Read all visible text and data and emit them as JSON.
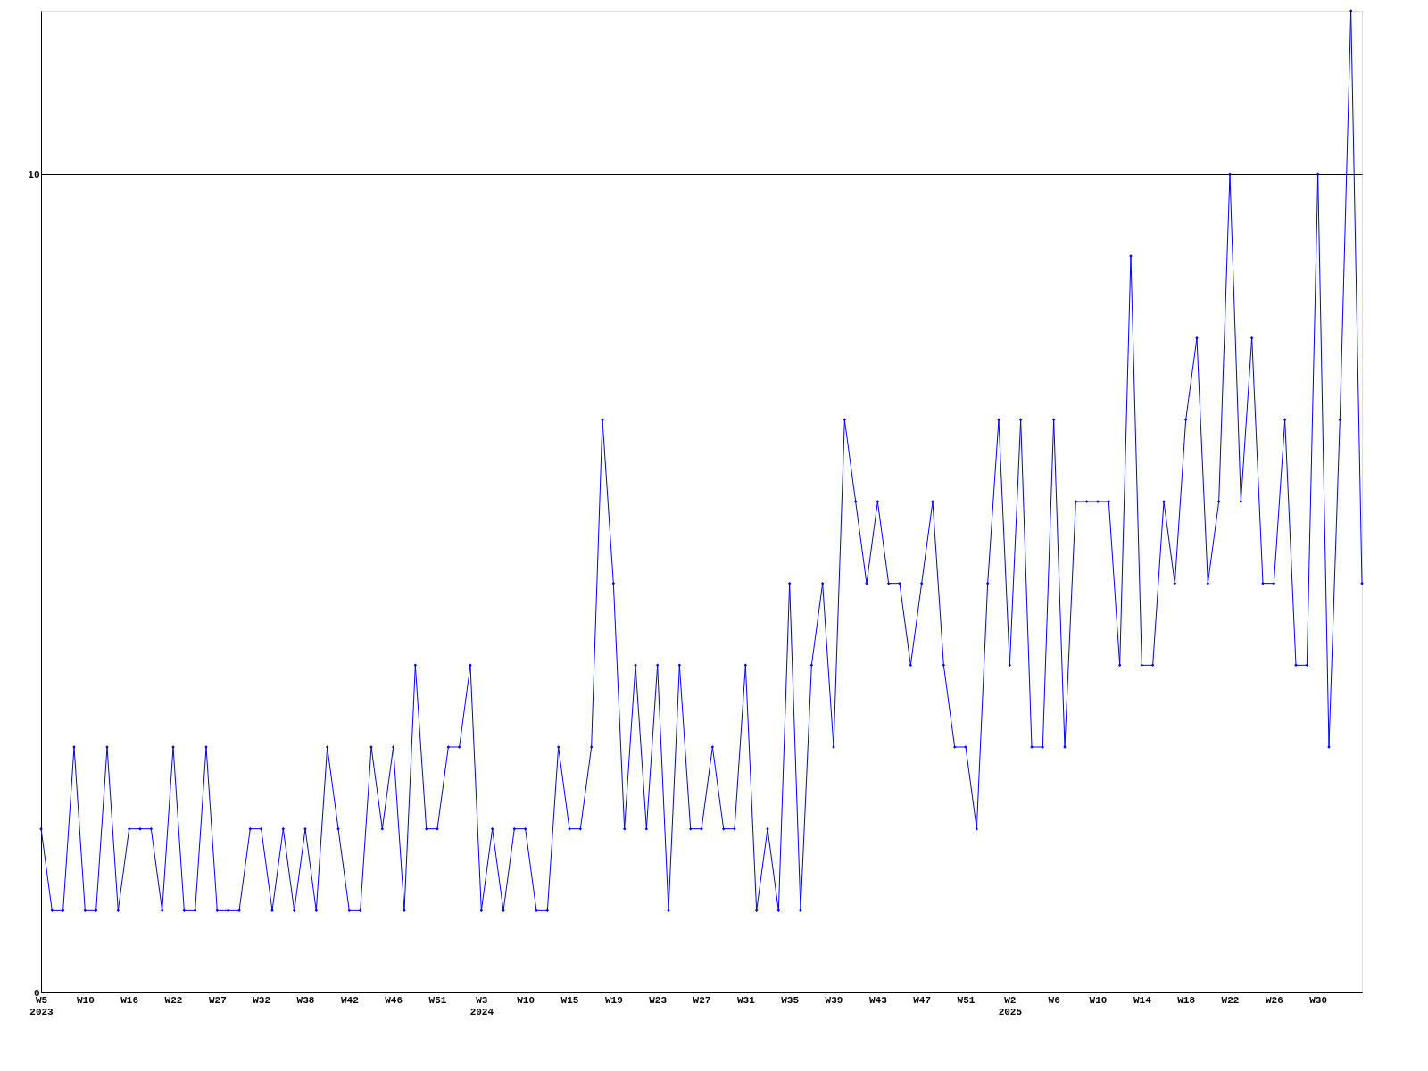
{
  "chart_data": {
    "type": "line",
    "categories": [
      "W5\n2023",
      null,
      null,
      null,
      "W10",
      null,
      null,
      null,
      "W16",
      null,
      null,
      null,
      "W22",
      null,
      null,
      null,
      "W27",
      null,
      null,
      null,
      "W32",
      null,
      null,
      null,
      "W38",
      null,
      null,
      null,
      "W42",
      null,
      null,
      null,
      "W46",
      null,
      null,
      null,
      "W51",
      null,
      null,
      null,
      "W3\n2024",
      null,
      null,
      null,
      "W10",
      null,
      null,
      null,
      "W15",
      null,
      null,
      null,
      "W19",
      null,
      null,
      null,
      "W23",
      null,
      null,
      null,
      "W27",
      null,
      null,
      null,
      "W31",
      null,
      null,
      null,
      "W35",
      null,
      null,
      null,
      "W39",
      null,
      null,
      null,
      "W43",
      null,
      null,
      null,
      "W47",
      null,
      null,
      null,
      "W51",
      null,
      null,
      null,
      "W2\n2025",
      null,
      null,
      null,
      "W6",
      null,
      null,
      null,
      "W10",
      null,
      null,
      null,
      "W14",
      null,
      null,
      null,
      "W18",
      null,
      null,
      null,
      "W22",
      null,
      null,
      null,
      "W26",
      null,
      null,
      null,
      "W30",
      null,
      null,
      null,
      null
    ],
    "series": [
      {
        "color": "#0000ff",
        "values": [
          2,
          1,
          1,
          3,
          1,
          1,
          3,
          1,
          2,
          2,
          2,
          1,
          3,
          1,
          1,
          3,
          1,
          1,
          1,
          2,
          2,
          1,
          2,
          1,
          2,
          1,
          3,
          2,
          1,
          1,
          3,
          2,
          3,
          1,
          4,
          2,
          2,
          3,
          3,
          4,
          1,
          2,
          1,
          2,
          2,
          1,
          1,
          3,
          2,
          2,
          3,
          7,
          5,
          2,
          4,
          2,
          4,
          1,
          4,
          2,
          2,
          3,
          2,
          2,
          4,
          1,
          2,
          1,
          5,
          1,
          4,
          5,
          3,
          7,
          6,
          5,
          6,
          5,
          5,
          4,
          5,
          6,
          4,
          3,
          3,
          2,
          5,
          7,
          4,
          7,
          3,
          3,
          7,
          3,
          6,
          6,
          6,
          6,
          4,
          9,
          4,
          4,
          6,
          5,
          7,
          8,
          5,
          6,
          10,
          6,
          8,
          5,
          5,
          7,
          4,
          4,
          10,
          3,
          7,
          12,
          5
        ]
      }
    ],
    "ylim": [
      0,
      12
    ],
    "yticks": [
      0,
      10
    ],
    "grid": "y",
    "marker": "diamond",
    "line_style": "solid"
  }
}
